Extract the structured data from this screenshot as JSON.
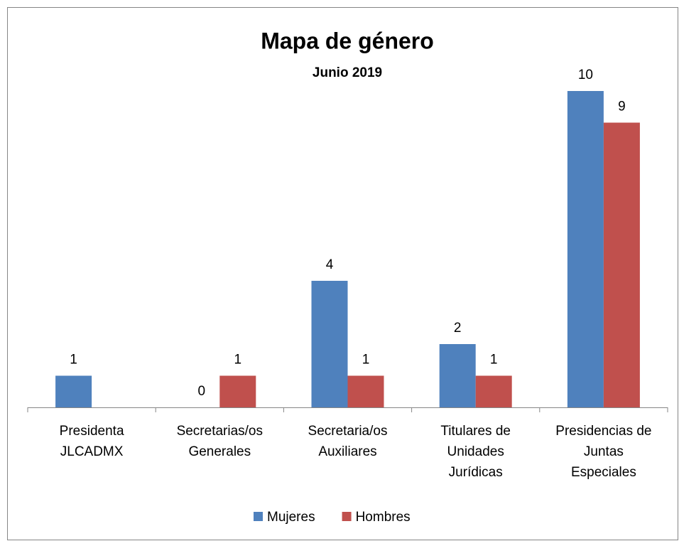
{
  "chart_data": {
    "type": "bar",
    "title": "Mapa de género",
    "subtitle": "Junio 2019",
    "categories": [
      "Presidenta\nJLCADMX",
      "Secretarias/os\nGenerales",
      "Secretaria/os\nAuxiliares",
      "Titulares de\nUnidades\nJurídicas",
      "Presidencias de\nJuntas\nEspeciales"
    ],
    "series": [
      {
        "name": "Mujeres",
        "color": "#4f81bd",
        "values": [
          1,
          0,
          4,
          2,
          10
        ]
      },
      {
        "name": "Hombres",
        "color": "#c0504d",
        "values": [
          null,
          1,
          1,
          1,
          9
        ]
      }
    ],
    "ylim": [
      0,
      10
    ],
    "legend": "bottom"
  }
}
